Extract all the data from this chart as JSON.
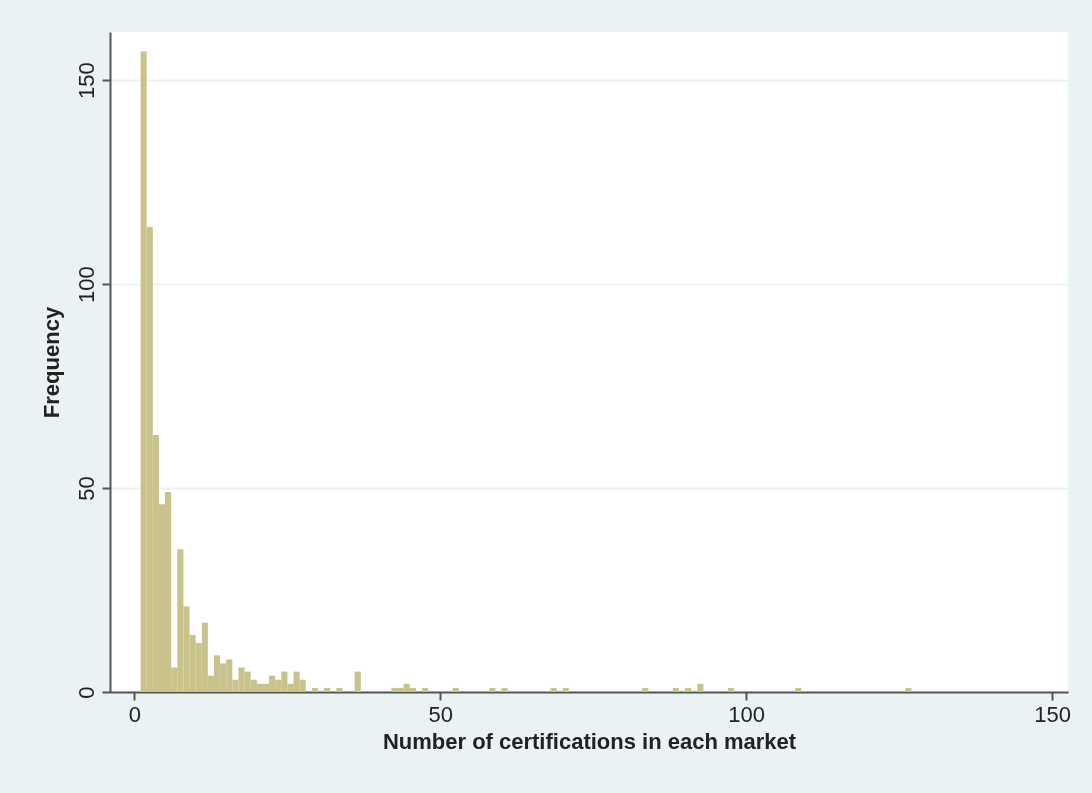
{
  "chart_data": {
    "type": "histogram",
    "xlabel": "Number of certifications in each market",
    "ylabel": "Frequency",
    "bins": [
      1,
      2,
      3,
      4,
      5,
      6,
      7,
      8,
      9,
      10,
      11,
      12,
      13,
      14,
      15,
      16,
      17,
      18,
      19,
      20,
      21,
      22,
      23,
      24,
      25,
      26,
      27,
      28,
      29,
      30,
      31,
      32,
      33,
      34,
      35,
      36,
      37,
      38,
      39,
      40,
      41,
      42,
      43,
      44,
      45,
      46,
      47,
      48,
      49,
      50,
      51,
      52,
      53,
      54,
      55,
      56,
      57,
      58,
      59,
      60,
      61,
      62,
      63,
      64,
      65,
      66,
      67,
      68,
      69,
      70,
      71,
      72,
      73,
      74,
      75,
      76,
      77,
      78,
      79,
      80,
      81,
      82,
      83,
      84,
      85,
      86,
      87,
      88,
      89,
      90,
      91,
      92,
      93,
      94,
      95,
      96,
      97,
      98,
      99,
      100,
      101,
      102,
      103,
      104,
      105,
      106,
      107,
      108,
      109,
      110,
      111,
      112,
      113,
      114,
      115,
      116,
      117,
      118,
      119,
      120,
      121,
      122,
      123,
      124,
      125,
      126,
      127
    ],
    "values": [
      157,
      114,
      63,
      46,
      49,
      6,
      35,
      21,
      14,
      12,
      17,
      4,
      9,
      7,
      8,
      3,
      6,
      5,
      3,
      2,
      2,
      4,
      3,
      5,
      2,
      5,
      3,
      0,
      1,
      0,
      1,
      0,
      1,
      0,
      0,
      5,
      0,
      0,
      0,
      0,
      0,
      1,
      1,
      2,
      1,
      0,
      1,
      0,
      0,
      0,
      0,
      1,
      0,
      0,
      0,
      0,
      0,
      1,
      0,
      1,
      0,
      0,
      0,
      0,
      0,
      0,
      0,
      1,
      0,
      1,
      0,
      0,
      0,
      0,
      0,
      0,
      0,
      0,
      0,
      0,
      0,
      0,
      1,
      0,
      0,
      0,
      0,
      1,
      0,
      1,
      0,
      2,
      0,
      0,
      0,
      0,
      1,
      0,
      0,
      0,
      0,
      0,
      0,
      0,
      0,
      0,
      0,
      1,
      0,
      0,
      0,
      0,
      0,
      0,
      0,
      0,
      0,
      0,
      0,
      0,
      0,
      0,
      0,
      0,
      0,
      1
    ],
    "color": "#c9c28b",
    "xlim": [
      -4,
      152.6
    ],
    "ylim": [
      0,
      161.8
    ],
    "xticks": [
      0,
      50,
      100,
      150
    ],
    "yticks": [
      0,
      50,
      100,
      150
    ],
    "grid": "y"
  }
}
